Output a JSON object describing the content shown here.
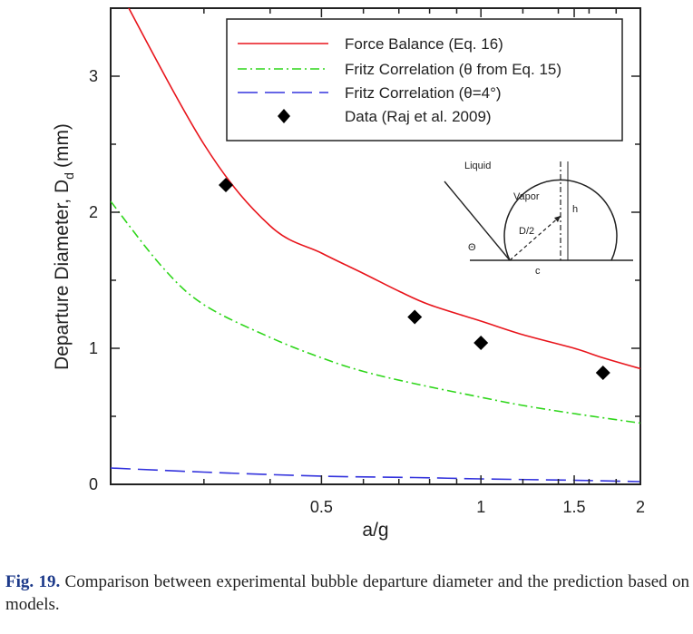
{
  "chart_data": {
    "type": "line",
    "x_scale": "log",
    "xlim": [
      0.2,
      2
    ],
    "ylim": [
      0,
      3.5
    ],
    "xlabel": "a/g",
    "ylabel": "Departure Diameter, D",
    "ylabel_subscript": "d",
    "ylabel_unit": "(mm)",
    "x_ticks": [
      {
        "value": 0.5,
        "label": "0.5"
      },
      {
        "value": 1,
        "label": "1"
      },
      {
        "value": 1.5,
        "label": "1.5"
      },
      {
        "value": 2,
        "label": "2"
      }
    ],
    "y_ticks": [
      {
        "value": 0,
        "label": "0"
      },
      {
        "value": 1,
        "label": "1"
      },
      {
        "value": 2,
        "label": "2"
      },
      {
        "value": 3,
        "label": "3"
      }
    ],
    "x_minor_ticks": [
      0.3,
      0.4,
      0.6,
      0.7,
      0.8,
      0.9,
      1.2,
      1.4,
      1.6,
      1.8
    ],
    "y_minor_ticks": [
      0.5,
      1.5,
      2.5
    ],
    "series": [
      {
        "name": "Force Balance (Eq. 16)",
        "style": "solid",
        "color": "#e8141b",
        "x": [
          0.2,
          0.3,
          0.4,
          0.5,
          0.6,
          0.7,
          0.8,
          1.0,
          1.2,
          1.5,
          1.7,
          2.0
        ],
        "y": [
          3.75,
          2.5,
          1.9,
          1.7,
          1.55,
          1.42,
          1.32,
          1.2,
          1.1,
          1.0,
          0.93,
          0.85
        ]
      },
      {
        "name": "Fritz Correlation (θ from Eq. 15)",
        "style": "dashdot",
        "color": "#2ed61a",
        "x": [
          0.2,
          0.25,
          0.3,
          0.4,
          0.5,
          0.6,
          0.75,
          1.0,
          1.2,
          1.5,
          2.0
        ],
        "y": [
          2.08,
          1.6,
          1.32,
          1.08,
          0.93,
          0.83,
          0.74,
          0.64,
          0.58,
          0.52,
          0.45
        ]
      },
      {
        "name": "Fritz Correlation (θ=4°)",
        "style": "longdash",
        "color": "#3333dd",
        "x": [
          0.2,
          0.3,
          0.5,
          0.75,
          1.0,
          1.5,
          2.0
        ],
        "y": [
          0.12,
          0.09,
          0.06,
          0.05,
          0.04,
          0.03,
          0.02
        ]
      },
      {
        "name": "Data (Raj et al. 2009)",
        "style": "markers",
        "marker": "diamond",
        "color": "#000000",
        "x": [
          0.33,
          0.75,
          1.0,
          1.7
        ],
        "y": [
          2.2,
          1.23,
          1.04,
          0.82
        ]
      }
    ],
    "legend": {
      "placement": "top-right",
      "entries": [
        "Force Balance (Eq. 16)",
        "Fritz Correlation (θ from Eq. 15)",
        "Fritz Correlation (θ=4°)",
        "Data (Raj et al. 2009)"
      ]
    },
    "inset_labels": {
      "liquid": "Liquid",
      "vapor": "Vapor",
      "height": "h",
      "half_diameter": "D/2",
      "angle": "Θ",
      "contact": "c"
    }
  },
  "caption": {
    "label": "Fig. 19.",
    "text": "Comparison between experimental bubble departure diameter and the prediction based on models."
  }
}
